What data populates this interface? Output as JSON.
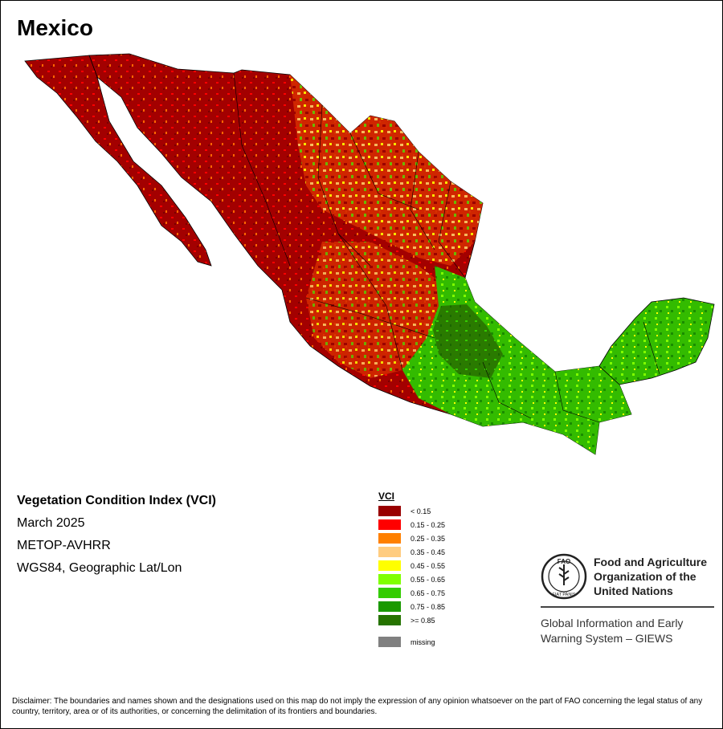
{
  "map": {
    "title": "Mexico",
    "info": {
      "index_name": "Vegetation Condition Index (VCI)",
      "period": "March 2025",
      "sensor": "METOP-AVHRR",
      "projection": "WGS84, Geographic Lat/Lon"
    },
    "legend": {
      "title": "VCI",
      "classes": [
        {
          "label": "< 0.15",
          "color": "#990000"
        },
        {
          "label": "0.15 - 0.25",
          "color": "#ff0000"
        },
        {
          "label": "0.25 - 0.35",
          "color": "#ff8000"
        },
        {
          "label": "0.35 - 0.45",
          "color": "#ffcc80"
        },
        {
          "label": "0.45 - 0.55",
          "color": "#ffff00"
        },
        {
          "label": "0.55 - 0.65",
          "color": "#80ff00"
        },
        {
          "label": "0.65 - 0.75",
          "color": "#33cc00"
        },
        {
          "label": "0.75 - 0.85",
          "color": "#1a9900"
        },
        {
          "label": ">= 0.85",
          "color": "#267300"
        }
      ],
      "missing": {
        "label": "missing",
        "color": "#808080"
      }
    }
  },
  "fao": {
    "org_line1": "Food and Agriculture",
    "org_line2": "Organization of the",
    "org_line3": "United Nations",
    "logo_letters": "FAO",
    "logo_motto": "FIAT PANIS",
    "giews_line1": "Global Information and Early",
    "giews_line2": "Warning System – GIEWS"
  },
  "disclaimer": "Disclaimer: The boundaries and names shown and the designations used on this map do not imply the expression of any opinion whatsoever on the part of FAO concerning the legal status of any country, territory, area or of its authorities, or concerning the delimitation of its frontiers and boundaries."
}
